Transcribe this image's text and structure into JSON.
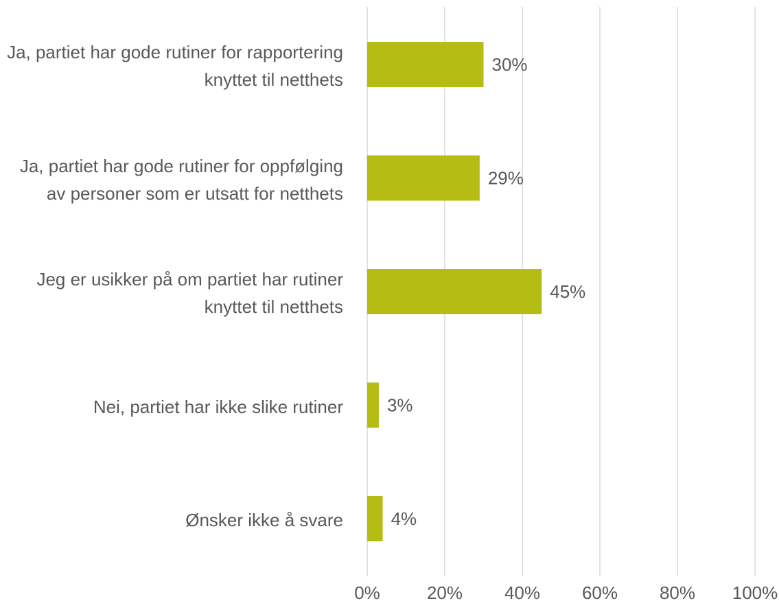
{
  "chart_data": {
    "type": "bar",
    "orientation": "horizontal",
    "categories": [
      "Ja, partiet har gode rutiner for rapportering knyttet til netthets",
      "Ja, partiet har gode rutiner for oppfølging av personer som er utsatt for netthets",
      "Jeg er usikker på om partiet har rutiner knyttet til netthets",
      "Nei, partiet har ikke slike rutiner",
      "Ønsker ikke å svare"
    ],
    "values": [
      30,
      29,
      45,
      3,
      4
    ],
    "value_labels": [
      "30%",
      "29%",
      "45%",
      "3%",
      "4%"
    ],
    "color": "#b5bd14",
    "xlim": [
      0,
      100
    ],
    "xticks": [
      {
        "value": 0,
        "label": "0%"
      },
      {
        "value": 20,
        "label": "20%"
      },
      {
        "value": 40,
        "label": "40%"
      },
      {
        "value": 60,
        "label": "60%"
      },
      {
        "value": 80,
        "label": "80%"
      },
      {
        "value": 100,
        "label": "100%"
      }
    ],
    "grid": true
  }
}
